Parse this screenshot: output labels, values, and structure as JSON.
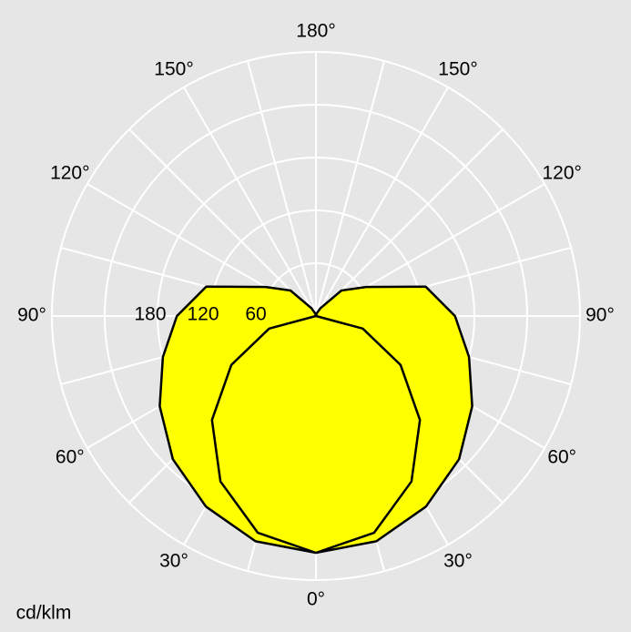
{
  "chart_data": {
    "type": "polar",
    "unit_label": "cd/klm",
    "rlim": [
      0,
      300
    ],
    "rgrid": [
      60,
      120,
      180,
      240,
      300
    ],
    "rticks": [
      60,
      120,
      180
    ],
    "angle_step": 15,
    "angle_ticks": [
      {
        "value": 0,
        "label": "0°"
      },
      {
        "value": 30,
        "label": "30°"
      },
      {
        "value": 60,
        "label": "60°"
      },
      {
        "value": 90,
        "label": "90°"
      },
      {
        "value": 120,
        "label": "120°"
      },
      {
        "value": 150,
        "label": "150°"
      },
      {
        "value": 180,
        "label": "180°"
      }
    ],
    "angles": [
      0,
      15,
      30,
      45,
      60,
      75,
      90,
      105,
      120,
      135,
      150,
      165,
      180
    ],
    "fill": "#ffff00",
    "series": [
      {
        "color": "#000000",
        "values": [
          269,
          265,
          250,
          230,
          205,
          180,
          158,
          129,
          66,
          41,
          10,
          3,
          0
        ]
      },
      {
        "color": "#000000",
        "values": [
          269,
          255,
          217,
          167,
          111,
          55,
          0,
          0,
          0,
          0,
          0,
          0,
          0
        ]
      }
    ]
  }
}
